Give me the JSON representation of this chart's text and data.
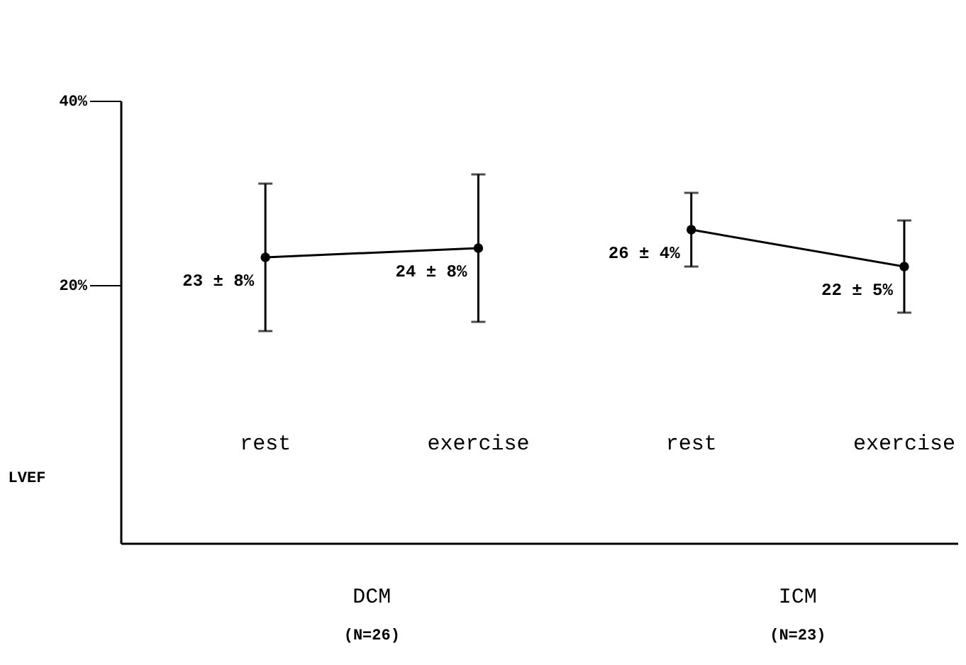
{
  "chart_data": {
    "type": "line",
    "ylabel": "LVEF",
    "categories": [
      "rest",
      "exercise",
      "rest",
      "exercise"
    ],
    "series": [
      {
        "color": "#000000",
        "values": [
          23,
          24,
          null,
          null
        ],
        "errors": [
          8,
          8,
          null,
          null
        ],
        "value_labels": [
          "23 ± 8%",
          "24 ± 8%",
          null,
          null
        ]
      },
      {
        "color": "#000000",
        "values": [
          null,
          null,
          26,
          22
        ],
        "errors": [
          null,
          null,
          4,
          5
        ],
        "value_labels": [
          null,
          null,
          "26 ± 4%",
          "22 ± 5%"
        ]
      }
    ],
    "annotations": [
      "DCM",
      "(N=26)",
      "ICM",
      "(N=23)"
    ],
    "ylim": [
      -8,
      40
    ],
    "yticks": [
      {
        "value": 20,
        "label": "20%"
      },
      {
        "value": 40,
        "label": "40%"
      }
    ],
    "marker": "circle",
    "line_style": "solid"
  }
}
